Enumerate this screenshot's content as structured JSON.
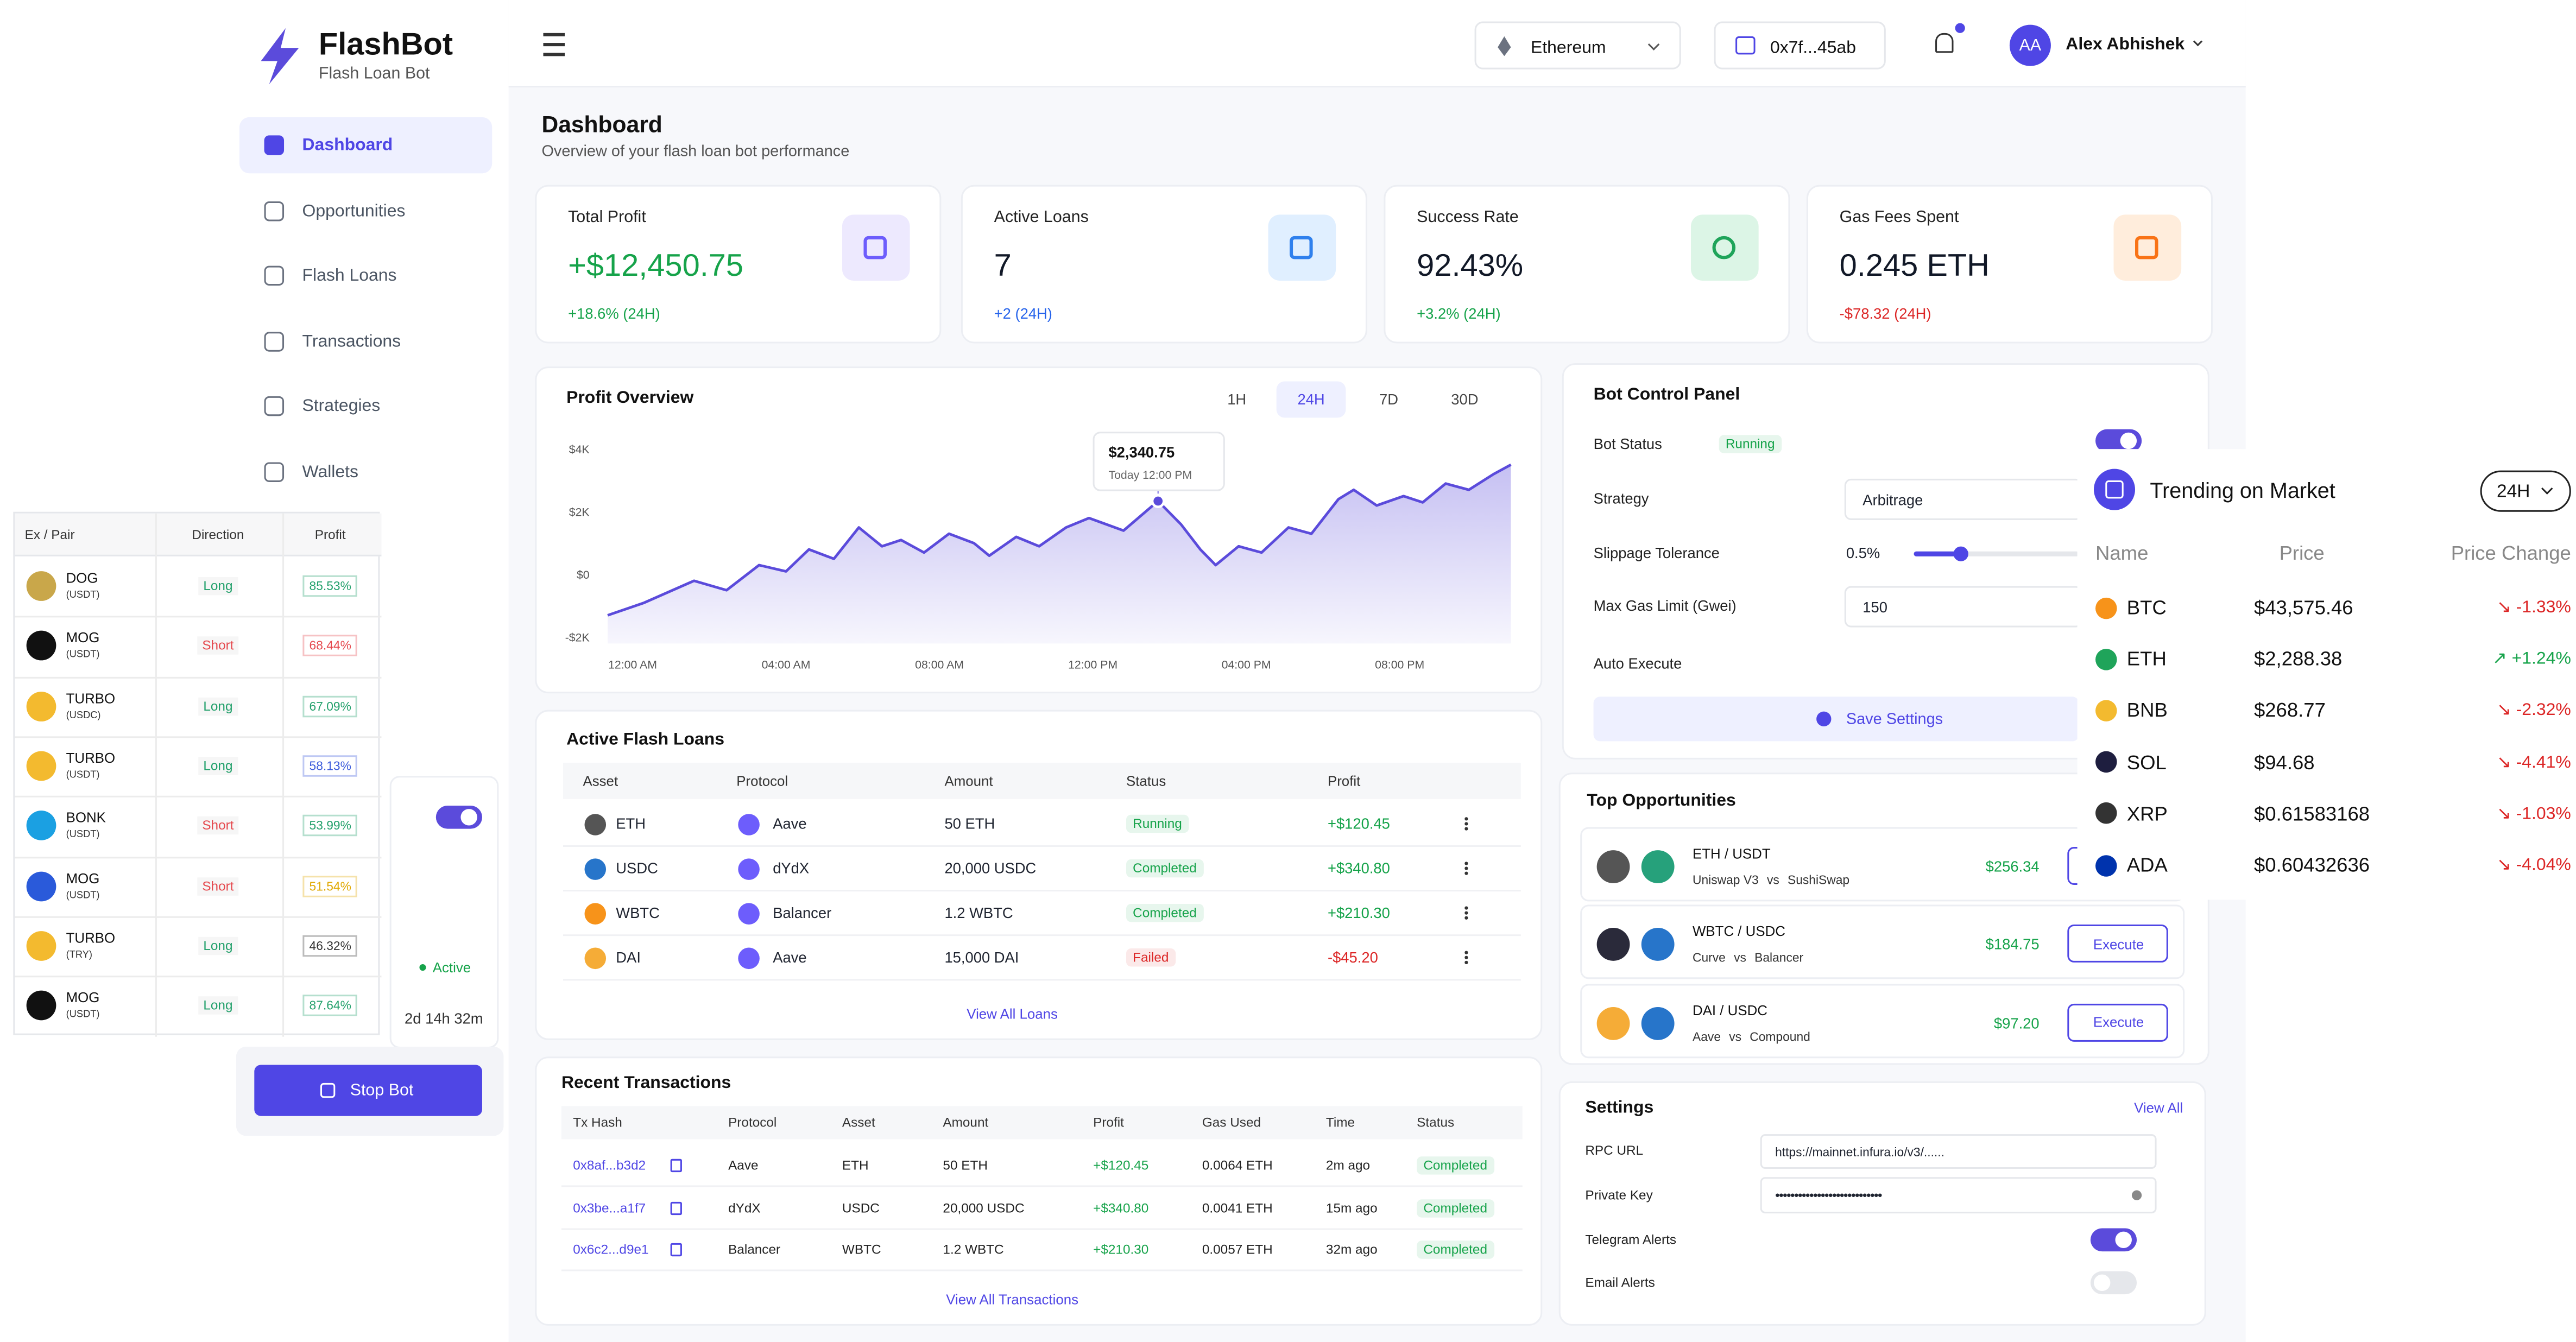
{
  "sidebar": {
    "brand": "FlashBot",
    "tagline": "Flash Loan Bot",
    "nav": [
      "Dashboard",
      "Opportunities",
      "Flash Loans",
      "Transactions",
      "Strategies",
      "Wallets"
    ],
    "bot_status": "Active",
    "uptime": "2d 14h 32m",
    "stop_button": "Stop Bot"
  },
  "pairs_table": {
    "headers": [
      "Ex / Pair",
      "Direction",
      "Profit"
    ],
    "rows": [
      {
        "pair": "DOG",
        "quote": "(USDT)",
        "direction": "Long",
        "profit": "85.53%",
        "direction_color": "#22a06b",
        "profit_color": "#22a06b",
        "icon_color": "#c9a74a"
      },
      {
        "pair": "MOG",
        "quote": "(USDT)",
        "direction": "Short",
        "profit": "68.44%",
        "direction_color": "#e5484d",
        "profit_color": "#e5484d",
        "icon_color": "#111111"
      },
      {
        "pair": "TURBO",
        "quote": "(USDC)",
        "direction": "Long",
        "profit": "67.09%",
        "direction_color": "#22a06b",
        "profit_color": "#22a06b",
        "icon_color": "#f3ba2f"
      },
      {
        "pair": "TURBO",
        "quote": "(USDT)",
        "direction": "Long",
        "profit": "58.13%",
        "direction_color": "#22a06b",
        "profit_color": "#3b5bdb",
        "icon_color": "#f3ba2f"
      },
      {
        "pair": "BONK",
        "quote": "(USDT)",
        "direction": "Short",
        "profit": "53.99%",
        "direction_color": "#e5484d",
        "profit_color": "#22a06b",
        "icon_color": "#1ba0e2"
      },
      {
        "pair": "MOG",
        "quote": "(USDT)",
        "direction": "Short",
        "profit": "51.54%",
        "direction_color": "#e5484d",
        "profit_color": "#e0a800",
        "icon_color": "#2a5ada"
      },
      {
        "pair": "TURBO",
        "quote": "(TRY)",
        "direction": "Long",
        "profit": "46.32%",
        "direction_color": "#22a06b",
        "profit_color": "#333333",
        "icon_color": "#f3ba2f"
      },
      {
        "pair": "MOG",
        "quote": "(USDT)",
        "direction": "Long",
        "profit": "87.64%",
        "direction_color": "#22a06b",
        "profit_color": "#22a06b",
        "icon_color": "#111111"
      }
    ]
  },
  "topbar": {
    "network": "Ethereum",
    "wallet": "0x7f...45ab",
    "initials": "AA",
    "user": "Alex Abhishek"
  },
  "header": {
    "title": "Dashboard",
    "subtitle": "Overview of your flash loan bot performance"
  },
  "stats": [
    {
      "label": "Total Profit",
      "value": "+$12,450.75",
      "change": "+18.6% (24H)",
      "value_color": "#16a34a",
      "change_color": "#16a34a",
      "icon_bg": "#ede9fe",
      "icon_color": "#6d5dfc"
    },
    {
      "label": "Active Loans",
      "value": "7",
      "change": "+2 (24H)",
      "value_color": "#111827",
      "change_color": "#2563eb",
      "icon_bg": "#e0efff",
      "icon_color": "#2f80ed"
    },
    {
      "label": "Success Rate",
      "value": "92.43%",
      "change": "+3.2% (24H)",
      "value_color": "#111827",
      "change_color": "#16a34a",
      "icon_bg": "#dcf5e6",
      "icon_color": "#1fa45a"
    },
    {
      "label": "Gas Fees Spent",
      "value": "0.245 ETH",
      "change": "-$78.32 (24H)",
      "value_color": "#111827",
      "change_color": "#dc2626",
      "icon_bg": "#ffeddc",
      "icon_color": "#f97316"
    }
  ],
  "chart_data": {
    "type": "line",
    "title": "Profit Overview",
    "ranges": [
      "1H",
      "24H",
      "7D",
      "30D"
    ],
    "selected_range": 1,
    "tooltip": {
      "value": "$2,340.75",
      "time": "Today 12:00 PM",
      "index": 20
    },
    "x": [
      -0.65,
      0.3,
      1.6,
      2.45,
      3.3,
      4.0,
      4.6,
      5.25,
      5.9,
      6.5,
      7.0,
      7.6,
      8.25,
      8.9,
      9.3,
      10.0,
      10.6,
      11.3,
      11.9,
      12.8,
      13.7,
      14.3,
      14.8,
      15.2,
      15.8,
      16.4,
      17.1,
      17.7,
      18.4,
      18.8,
      19.4,
      20.1,
      20.6,
      21.2,
      21.8,
      22.45,
      22.9
    ],
    "values": [
      -1300,
      -900,
      -200,
      -500,
      300,
      100,
      800,
      500,
      1500,
      900,
      1100,
      700,
      1300,
      1000,
      600,
      1200,
      900,
      1500,
      1800,
      1400,
      2340.75,
      1600,
      800,
      300,
      900,
      700,
      1500,
      1300,
      2400,
      2700,
      2200,
      2500,
      2300,
      2900,
      2700,
      3200,
      3500
    ],
    "color": "#5b4bdb",
    "xlim": [
      -0.65,
      22.9
    ],
    "ylim": [
      -2200,
      4400
    ],
    "xticks": [
      {
        "value": 0,
        "label": "12:00 AM"
      },
      {
        "value": 4,
        "label": "04:00 AM"
      },
      {
        "value": 8,
        "label": "08:00 AM"
      },
      {
        "value": 12,
        "label": "12:00 PM"
      },
      {
        "value": 16,
        "label": "04:00 PM"
      },
      {
        "value": 20,
        "label": "08:00 PM"
      }
    ],
    "yticks": [
      {
        "value": 4000,
        "label": "$4K"
      },
      {
        "value": 2000,
        "label": "$2K"
      },
      {
        "value": 0,
        "label": "$0"
      },
      {
        "value": -2000,
        "label": "-$2K"
      }
    ],
    "grid": false
  },
  "loans": {
    "title": "Active Flash Loans",
    "headers": [
      "Asset",
      "Protocol",
      "Amount",
      "Status",
      "Profit"
    ],
    "rows": [
      [
        "ETH",
        "Aave",
        "50 ETH",
        "Running",
        "+$120.45"
      ],
      [
        "USDC",
        "dYdX",
        "20,000 USDC",
        "Completed",
        "+$340.80"
      ],
      [
        "WBTC",
        "Balancer",
        "1.2 WBTC",
        "Completed",
        "+$210.30"
      ],
      [
        "DAI",
        "Aave",
        "15,000 DAI",
        "Failed",
        "-$45.20"
      ]
    ],
    "status_colors": [
      "#16a34a",
      "#16a34a",
      "#16a34a",
      "#dc2626"
    ],
    "asset_colors": [
      "#555555",
      "#2775ca",
      "#f7931a",
      "#f5ac37"
    ],
    "link": "View All Loans"
  },
  "transactions": {
    "title": "Recent Transactions",
    "headers": [
      "Tx Hash",
      "Protocol",
      "Asset",
      "Amount",
      "Profit",
      "Gas Used",
      "Time",
      "Status"
    ],
    "rows": [
      [
        "0x8af...b3d2",
        "Aave",
        "ETH",
        "50 ETH",
        "+$120.45",
        "0.0064 ETH",
        "2m ago",
        "Completed"
      ],
      [
        "0x3be...a1f7",
        "dYdX",
        "USDC",
        "20,000 USDC",
        "+$340.80",
        "0.0041 ETH",
        "15m ago",
        "Completed"
      ],
      [
        "0x6c2...d9e1",
        "Balancer",
        "WBTC",
        "1.2 WBTC",
        "+$210.30",
        "0.0057 ETH",
        "32m ago",
        "Completed"
      ]
    ],
    "link": "View All Transactions"
  },
  "bot_control": {
    "title": "Bot Control Panel",
    "status_label": "Bot Status",
    "status": "Running",
    "strategy_label": "Strategy",
    "strategy": "Arbitrage",
    "slippage_label": "Slippage Tolerance",
    "slippage": "0.5%",
    "gas_label": "Max Gas Limit (Gwei)",
    "gas": "150",
    "auto_label": "Auto Execute",
    "save": "Save Settings"
  },
  "opportunities": {
    "title": "Top Opportunities",
    "vs": "vs",
    "button": "Execute",
    "items": [
      {
        "pair": "ETH / USDT",
        "dex_a": "Uniswap V3",
        "dex_b": "SushiSwap",
        "profit": "$256.34",
        "colors": [
          "#555555",
          "#26a17b"
        ]
      },
      {
        "pair": "WBTC / USDC",
        "dex_a": "Curve",
        "dex_b": "Balancer",
        "profit": "$184.75",
        "colors": [
          "#2a2a3a",
          "#2775ca"
        ]
      },
      {
        "pair": "DAI / USDC",
        "dex_a": "Aave",
        "dex_b": "Compound",
        "profit": "$97.20",
        "colors": [
          "#f5ac37",
          "#2775ca"
        ]
      }
    ]
  },
  "settings": {
    "title": "Settings",
    "link": "View All",
    "rpc_label": "RPC URL",
    "rpc": "https://mainnet.infura.io/v3/......",
    "key_label": "Private Key",
    "key": "••••••••••••••••••••••••••••",
    "telegram_label": "Telegram Alerts",
    "telegram": true,
    "email_label": "Email Alerts",
    "email": false
  },
  "trending": {
    "title": "Trending on Market",
    "range": "24H",
    "headers": [
      "Name",
      "Price",
      "Price Change"
    ],
    "rows": [
      {
        "name": "BTC",
        "price": "$43,575.46",
        "change": "-1.33%",
        "color": "#f7931a"
      },
      {
        "name": "ETH",
        "price": "$2,288.38",
        "change": "+1.24%",
        "color": "#1fa45a"
      },
      {
        "name": "BNB",
        "price": "$268.77",
        "change": "-2.32%",
        "color": "#f3ba2f"
      },
      {
        "name": "SOL",
        "price": "$94.68",
        "change": "-4.41%",
        "color": "#1e1e3f"
      },
      {
        "name": "XRP",
        "price": "$0.61583168",
        "change": "-1.03%",
        "color": "#333333"
      },
      {
        "name": "ADA",
        "price": "$0.60432636",
        "change": "-4.04%",
        "color": "#0033ad"
      }
    ]
  }
}
